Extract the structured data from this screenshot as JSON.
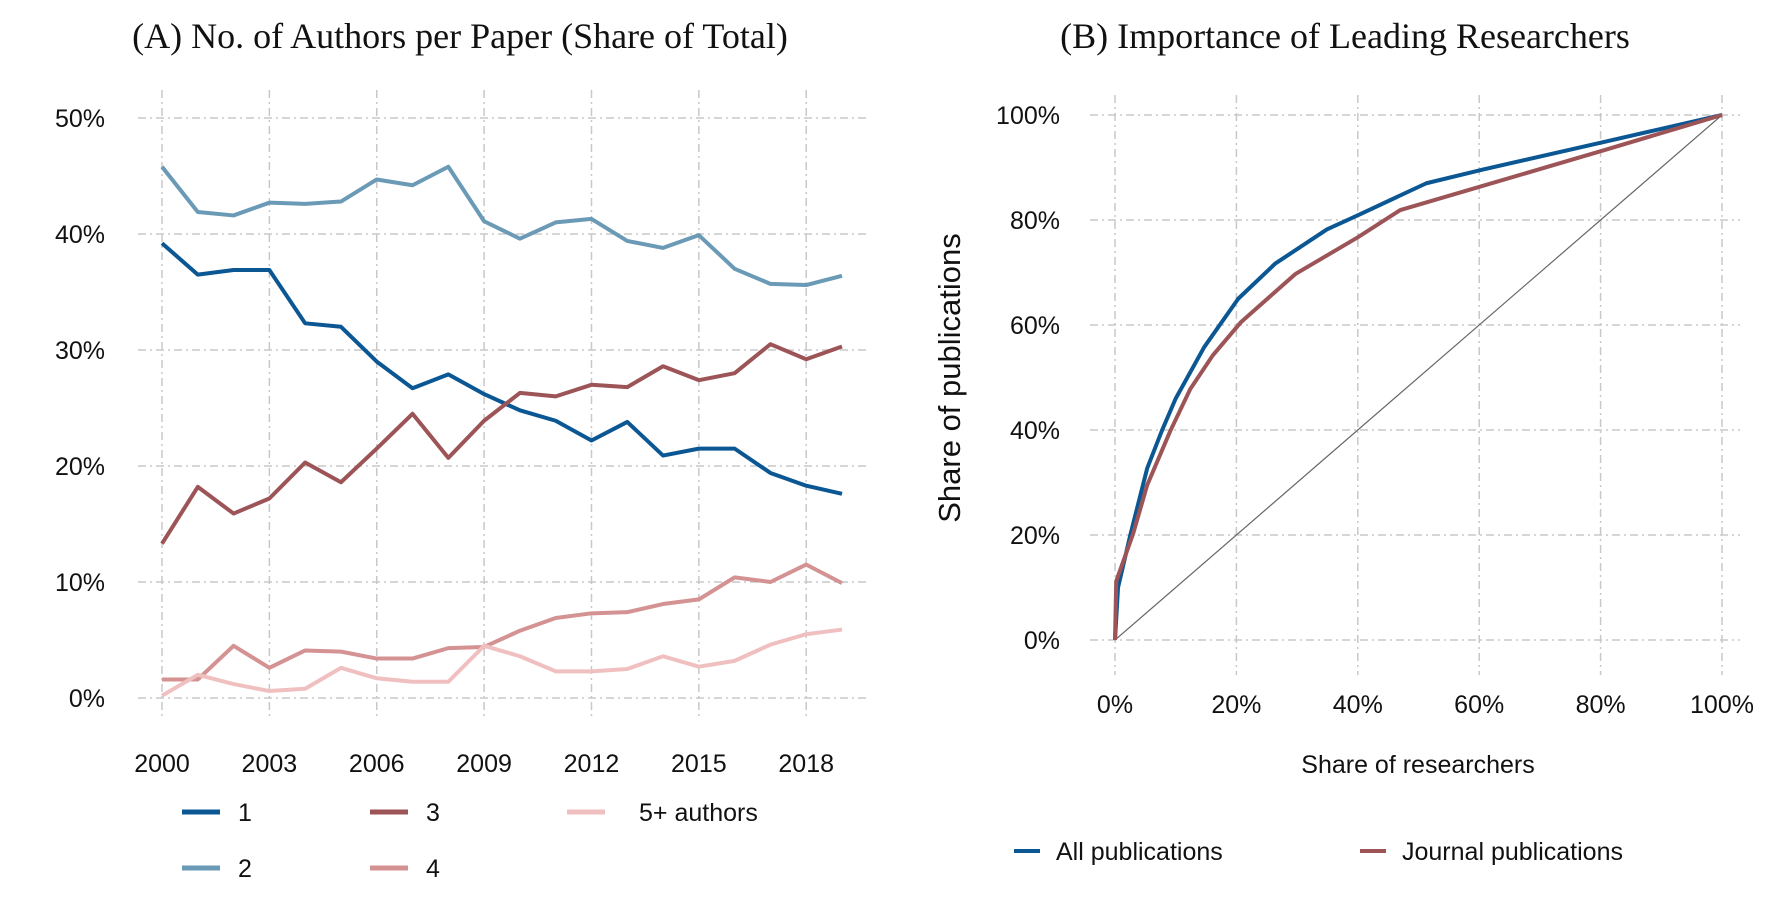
{
  "chart_data": [
    {
      "type": "line",
      "title": "(A) No. of Authors per Paper (Share of Total)",
      "xlabel": "",
      "ylabel": "",
      "x": [
        2000,
        2001,
        2002,
        2003,
        2004,
        2005,
        2006,
        2007,
        2008,
        2009,
        2010,
        2011,
        2012,
        2013,
        2014,
        2015,
        2016,
        2017,
        2018,
        2019
      ],
      "xticks": [
        "2000",
        "2003",
        "2006",
        "2009",
        "2012",
        "2015",
        "2018"
      ],
      "yticks": [
        "0%",
        "10%",
        "20%",
        "30%",
        "40%",
        "50%"
      ],
      "ylim": [
        0,
        50
      ],
      "grid": true,
      "legend_position": "bottom",
      "series": [
        {
          "name": "1",
          "color": "#0b5794",
          "values": [
            39.2,
            36.5,
            36.9,
            36.9,
            32.3,
            32.0,
            29.0,
            26.7,
            27.9,
            26.2,
            24.8,
            23.9,
            22.2,
            23.8,
            20.9,
            21.5,
            21.5,
            19.4,
            18.3,
            17.6
          ]
        },
        {
          "name": "2",
          "color": "#6a9ab5",
          "values": [
            45.8,
            41.9,
            41.6,
            42.7,
            42.6,
            42.8,
            44.7,
            44.2,
            45.8,
            41.1,
            39.6,
            41.0,
            41.3,
            39.4,
            38.8,
            39.9,
            37.0,
            35.7,
            35.6,
            36.4
          ]
        },
        {
          "name": "3",
          "color": "#9c5457",
          "values": [
            13.3,
            18.2,
            15.9,
            17.2,
            20.3,
            18.6,
            21.5,
            24.5,
            20.7,
            23.9,
            26.3,
            26.0,
            27.0,
            26.8,
            28.6,
            27.4,
            28.0,
            30.5,
            29.2,
            30.3
          ]
        },
        {
          "name": "4",
          "color": "#d49292",
          "values": [
            1.6,
            1.6,
            4.5,
            2.6,
            4.1,
            4.0,
            3.4,
            3.4,
            4.3,
            4.4,
            5.8,
            6.9,
            7.3,
            7.4,
            8.1,
            8.5,
            10.4,
            10.0,
            11.5,
            9.9
          ]
        },
        {
          "name": "5+ authors",
          "color": "#f0c0c0",
          "values": [
            0.2,
            2.0,
            1.2,
            0.6,
            0.8,
            2.6,
            1.7,
            1.4,
            1.4,
            4.5,
            3.6,
            2.3,
            2.3,
            2.5,
            3.6,
            2.7,
            3.2,
            4.6,
            5.5,
            5.9
          ]
        }
      ]
    },
    {
      "type": "line",
      "title": "(B) Importance of Leading Researchers",
      "xlabel": "Share of researchers",
      "ylabel": "Share of publications",
      "xticks": [
        "0%",
        "20%",
        "40%",
        "60%",
        "80%",
        "100%"
      ],
      "yticks": [
        "0%",
        "20%",
        "40%",
        "60%",
        "80%",
        "100%"
      ],
      "xlim": [
        0,
        100
      ],
      "ylim": [
        0,
        100
      ],
      "grid": true,
      "legend_position": "bottom",
      "reference_line": {
        "color": "#666666",
        "points": [
          [
            0,
            0
          ],
          [
            100,
            100
          ]
        ]
      },
      "series": [
        {
          "name": "All publications",
          "color": "#0b5794",
          "points": [
            [
              0,
              0
            ],
            [
              0.5,
              10
            ],
            [
              2.5,
              19.9
            ],
            [
              5.3,
              32.7
            ],
            [
              7.7,
              39.8
            ],
            [
              10,
              46
            ],
            [
              14.7,
              55.8
            ],
            [
              20.3,
              65
            ],
            [
              26.4,
              71.7
            ],
            [
              34.9,
              78.2
            ],
            [
              40,
              80.9
            ],
            [
              51.3,
              87
            ],
            [
              60.6,
              89.6
            ],
            [
              80.3,
              94.8
            ],
            [
              100,
              100
            ]
          ]
        },
        {
          "name": "Journal publications",
          "color": "#9c5457",
          "points": [
            [
              0,
              0
            ],
            [
              0.2,
              11.2
            ],
            [
              3,
              20.3
            ],
            [
              5.3,
              29.5
            ],
            [
              9.1,
              39.8
            ],
            [
              12.4,
              47.8
            ],
            [
              16.1,
              54.2
            ],
            [
              20.8,
              60.6
            ],
            [
              29.7,
              69.7
            ],
            [
              40,
              76.7
            ],
            [
              47,
              81.9
            ],
            [
              59.7,
              86.2
            ],
            [
              80.3,
              93.2
            ],
            [
              100,
              100
            ]
          ]
        }
      ]
    }
  ]
}
